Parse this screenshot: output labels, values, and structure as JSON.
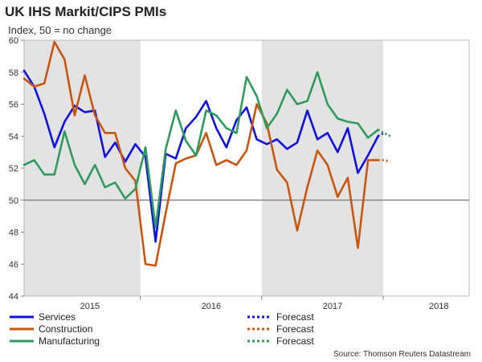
{
  "chart_data": {
    "type": "line",
    "title": "UK IHS Markit/CIPS PMIs",
    "subtitle": "Index, 50 = no change",
    "source": "Source: Thomson Reuters Datastream",
    "ylim": [
      44,
      60
    ],
    "yticks": [
      44,
      46,
      48,
      50,
      52,
      54,
      56,
      58,
      60
    ],
    "reference_line": 50,
    "x_labels": [
      {
        "label": "2015",
        "at": 6.5
      },
      {
        "label": "2016",
        "at": 18.5
      },
      {
        "label": "2017",
        "at": 30.5
      },
      {
        "label": "2018",
        "at": 41
      }
    ],
    "x_range": [
      0,
      44
    ],
    "shaded_ranges": [
      [
        0,
        11.5
      ],
      [
        23.5,
        35.5
      ]
    ],
    "colors": {
      "services": "#1010e0",
      "construction": "#c8560c",
      "manufacturing": "#2e9b5e",
      "reference": "#888888",
      "shade": "#e3e3e3"
    },
    "series": [
      {
        "name": "Services",
        "color": "#1010e0",
        "values": [
          58.1,
          57.1,
          55.4,
          53.3,
          54.9,
          55.9,
          55.5,
          55.6,
          52.7,
          53.6,
          52.4,
          53.5,
          52.7,
          47.4,
          52.9,
          52.6,
          54.5,
          55.2,
          56.2,
          54.5,
          53.3,
          55.0,
          55.8,
          53.8,
          53.5,
          53.8,
          53.2,
          53.6,
          55.6,
          53.8,
          54.2,
          53.0,
          54.5,
          51.7,
          52.8,
          54.0
        ],
        "forecast": [
          54.0,
          54.2,
          54.0
        ]
      },
      {
        "name": "Construction",
        "color": "#c8560c",
        "values": [
          57.6,
          57.1,
          57.3,
          59.9,
          58.8,
          55.3,
          57.8,
          55.3,
          54.2,
          54.2,
          52.0,
          51.2,
          46.0,
          45.9,
          49.2,
          52.3,
          52.6,
          52.8,
          54.2,
          52.2,
          52.5,
          52.2,
          53.1,
          56.0,
          54.8,
          51.9,
          51.1,
          48.1,
          50.8,
          53.1,
          52.2,
          50.2,
          51.4,
          47.0,
          52.5,
          52.5
        ],
        "forecast": [
          52.5,
          52.5,
          52.4
        ]
      },
      {
        "name": "Manufacturing",
        "color": "#2e9b5e",
        "values": [
          52.2,
          52.5,
          51.6,
          51.6,
          54.3,
          52.2,
          51.0,
          52.2,
          50.8,
          51.1,
          50.1,
          50.7,
          53.3,
          48.3,
          53.2,
          55.6,
          53.7,
          52.8,
          55.6,
          55.3,
          54.5,
          54.2,
          57.7,
          56.5,
          54.5,
          55.4,
          56.9,
          56.0,
          56.2,
          58.0,
          56.0,
          55.1,
          54.9,
          54.8,
          53.9,
          54.4
        ],
        "forecast": [
          54.4,
          54.2,
          54.0
        ]
      }
    ],
    "legend": [
      {
        "label": "Services",
        "style": "solid",
        "color": "#1010e0"
      },
      {
        "label": "Forecast",
        "style": "dotted",
        "color": "#1010e0"
      },
      {
        "label": "Construction",
        "style": "solid",
        "color": "#c8560c"
      },
      {
        "label": "Forecast",
        "style": "dotted",
        "color": "#c8560c"
      },
      {
        "label": "Manufacturing",
        "style": "solid",
        "color": "#2e9b5e"
      },
      {
        "label": "Forecast",
        "style": "dotted",
        "color": "#2e9b5e"
      }
    ]
  }
}
